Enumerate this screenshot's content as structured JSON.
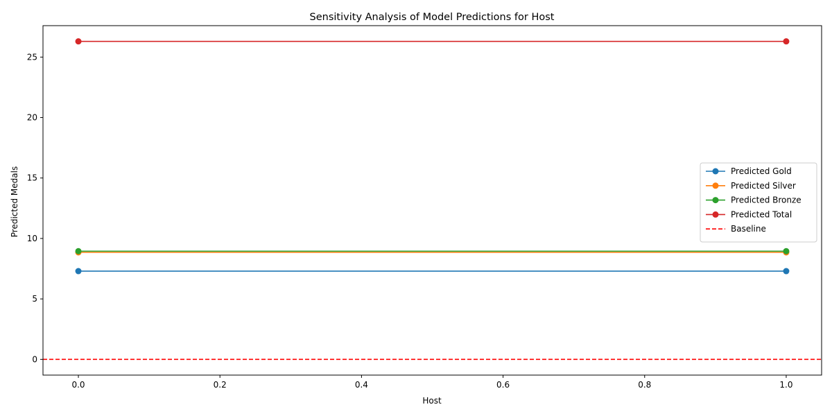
{
  "chart_data": {
    "type": "line",
    "title": "Sensitivity Analysis of Model Predictions for Host",
    "xlabel": "Host",
    "ylabel": "Predicted Medals",
    "xlim": [
      -0.05,
      1.05
    ],
    "ylim": [
      -1.3,
      27.6
    ],
    "x": [
      0.0,
      1.0
    ],
    "xticks": [
      0.0,
      0.2,
      0.4,
      0.6,
      0.8,
      1.0
    ],
    "xtick_labels": [
      "0.0",
      "0.2",
      "0.4",
      "0.6",
      "0.8",
      "1.0"
    ],
    "yticks": [
      0,
      5,
      10,
      15,
      20,
      25
    ],
    "ytick_labels": [
      "0",
      "5",
      "10",
      "15",
      "20",
      "25"
    ],
    "grid": false,
    "legend_position": "center-right",
    "series": [
      {
        "name": "Predicted Gold",
        "values": [
          7.3,
          7.3
        ],
        "color": "#1f77b4",
        "marker": "circle"
      },
      {
        "name": "Predicted Silver",
        "values": [
          8.85,
          8.85
        ],
        "color": "#ff7f0e",
        "marker": "circle"
      },
      {
        "name": "Predicted Bronze",
        "values": [
          8.95,
          8.95
        ],
        "color": "#2ca02c",
        "marker": "circle"
      },
      {
        "name": "Predicted Total",
        "values": [
          26.3,
          26.3
        ],
        "color": "#d62728",
        "marker": "circle"
      }
    ],
    "reference_lines": [
      {
        "name": "Baseline",
        "y": 0,
        "color": "#ff0000",
        "style": "dashed"
      }
    ]
  }
}
